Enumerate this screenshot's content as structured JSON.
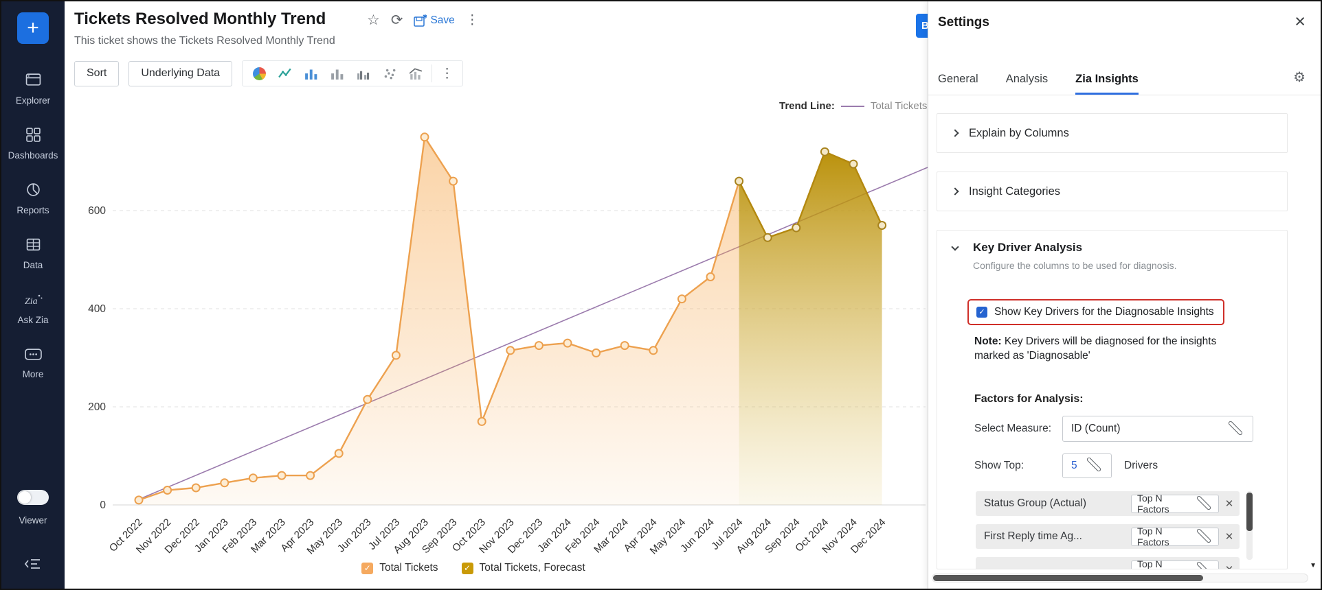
{
  "colors": {
    "accent_blue": "#1a73e8",
    "highlight_red": "#cf2e28",
    "sidebar_bg": "#151e33",
    "actual_orange": "#eda14f",
    "forecast_gold": "#b3880f",
    "trend_purple": "#9b7bad"
  },
  "sidebar": {
    "add_label": "+",
    "items": [
      {
        "id": "explorer",
        "label": "Explorer"
      },
      {
        "id": "dashboards",
        "label": "Dashboards"
      },
      {
        "id": "reports",
        "label": "Reports"
      },
      {
        "id": "data",
        "label": "Data"
      },
      {
        "id": "ask-zia",
        "label": "Ask Zia"
      },
      {
        "id": "more",
        "label": "More"
      }
    ],
    "viewer_label": "Viewer"
  },
  "header": {
    "title": "Tickets Resolved Monthly Trend",
    "subtitle": "This ticket shows the Tickets Resolved Monthly Trend",
    "save_label": "Save",
    "partial_button_label": "B"
  },
  "toolbar": {
    "sort_label": "Sort",
    "underlying_data_label": "Underlying Data",
    "chart_type_icons": [
      "pie-chart-icon",
      "line-chart-icon",
      "bar-chart-icon",
      "bar-chart-gray-icon",
      "grouped-bar-icon",
      "scatter-icon",
      "combo-chart-icon"
    ]
  },
  "chart_data": {
    "type": "area",
    "x": [
      "Oct 2022",
      "Nov 2022",
      "Dec 2022",
      "Jan 2023",
      "Feb 2023",
      "Mar 2023",
      "Apr 2023",
      "May 2023",
      "Jun 2023",
      "Jul 2023",
      "Aug 2023",
      "Sep 2023",
      "Oct 2023",
      "Nov 2023",
      "Dec 2023",
      "Jan 2024",
      "Feb 2024",
      "Mar 2024",
      "Apr 2024",
      "May 2024",
      "Jun 2024",
      "Jul 2024",
      "Aug 2024",
      "Sep 2024",
      "Oct 2024",
      "Nov 2024",
      "Dec 2024"
    ],
    "series": [
      {
        "name": "Total Tickets",
        "values": [
          10,
          30,
          35,
          45,
          55,
          60,
          60,
          105,
          215,
          305,
          750,
          660,
          170,
          315,
          325,
          330,
          310,
          325,
          315,
          420,
          465,
          660,
          545,
          565,
          720,
          695,
          570
        ]
      }
    ],
    "forecast_start_index": 21,
    "yticks": [
      0,
      200,
      400,
      600
    ],
    "ylim": [
      0,
      830
    ],
    "grid": "dashed-horizontal",
    "trend_line": {
      "label": "Trend Line:",
      "series": "Total Tickets",
      "color": "#9b7bad"
    },
    "legend": [
      {
        "label": "Total Tickets",
        "color": "#f5a95f"
      },
      {
        "label": "Total Tickets, Forecast",
        "color": "#c99a07"
      }
    ],
    "colors": {
      "actual_line": "#eda14f",
      "actual_fill": "#f6a84f",
      "forecast_line": "#b3880f",
      "forecast_fill": "#b78c00"
    }
  },
  "settings": {
    "title": "Settings",
    "tabs": [
      {
        "label": "General",
        "active": false
      },
      {
        "label": "Analysis",
        "active": false
      },
      {
        "label": "Zia Insights",
        "active": true
      }
    ],
    "sections": [
      {
        "label": "Explain by Columns",
        "expanded": false
      },
      {
        "label": "Insight Categories",
        "expanded": false
      }
    ],
    "key_driver": {
      "title": "Key Driver Analysis",
      "subtitle": "Configure the columns to be used for diagnosis.",
      "checkbox_label": "Show Key Drivers for the Diagnosable Insights",
      "checkbox_checked": true,
      "note_prefix": "Note:",
      "note_text": " Key Drivers will be diagnosed for the insights marked as 'Diagnosable'",
      "factors_heading": "Factors for Analysis:",
      "select_measure_label": "Select Measure:",
      "select_measure_value": "ID (Count)",
      "show_top_label": "Show Top:",
      "show_top_value": "5",
      "show_top_suffix": "Drivers",
      "factor_dropdown_label": "Top N Factors",
      "factors": [
        "Status Group (Actual)",
        "First Reply time Ag..."
      ],
      "partial_third_row": true
    }
  }
}
